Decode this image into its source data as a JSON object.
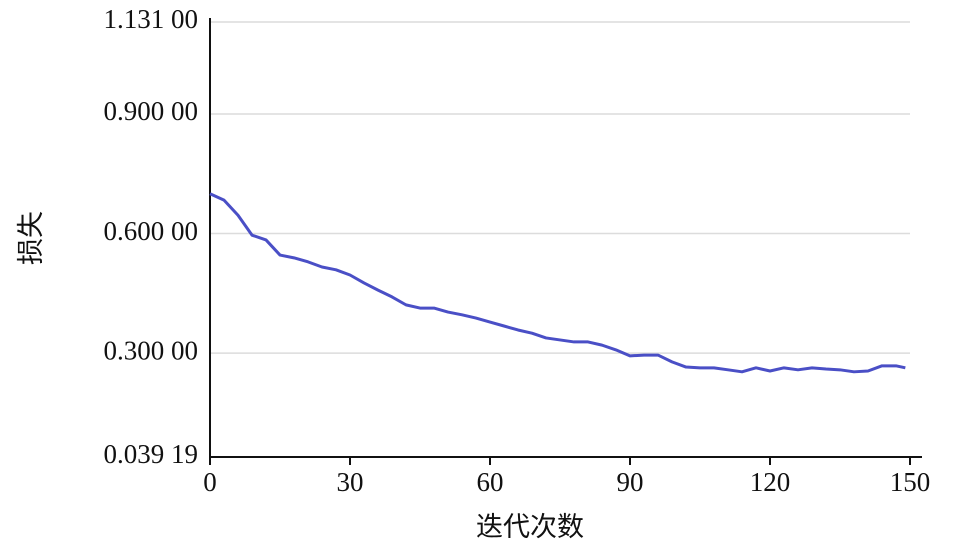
{
  "chart_data": {
    "type": "line",
    "x_label": "迭代次数",
    "y_label": "损失",
    "x": [
      0,
      3,
      6,
      9,
      12,
      15,
      18,
      21,
      24,
      27,
      30,
      33,
      36,
      39,
      42,
      45,
      48,
      51,
      54,
      57,
      60,
      63,
      66,
      69,
      72,
      75,
      78,
      81,
      84,
      87,
      90,
      93,
      96,
      99,
      102,
      105,
      108,
      111,
      114,
      117,
      120,
      123,
      126,
      129,
      132,
      135,
      138,
      141,
      144,
      147,
      149
    ],
    "series": [
      {
        "color": "#4a4fc6",
        "values": [
          0.7,
          0.684,
          0.646,
          0.596,
          0.584,
          0.546,
          0.539,
          0.529,
          0.516,
          0.509,
          0.496,
          0.476,
          0.458,
          0.441,
          0.421,
          0.413,
          0.413,
          0.403,
          0.396,
          0.388,
          0.378,
          0.368,
          0.358,
          0.35,
          0.338,
          0.333,
          0.328,
          0.328,
          0.32,
          0.308,
          0.293,
          0.295,
          0.295,
          0.278,
          0.265,
          0.263,
          0.263,
          0.258,
          0.253,
          0.263,
          0.255,
          0.263,
          0.258,
          0.263,
          0.26,
          0.258,
          0.253,
          0.255,
          0.268,
          0.268,
          0.263
        ]
      }
    ],
    "xlim": [
      0,
      150
    ],
    "xticks": [
      0,
      30,
      60,
      90,
      120,
      150
    ],
    "ylim": [
      0.03919,
      1.131
    ],
    "yticks": [
      {
        "value": 0.03919,
        "label": "0.039 19"
      },
      {
        "value": 0.3,
        "label": "0.300 00"
      },
      {
        "value": 0.6,
        "label": "0.600 00"
      },
      {
        "value": 0.9,
        "label": "0.900 00"
      },
      {
        "value": 1.131,
        "label": "1.131 00"
      }
    ],
    "grid": true
  }
}
